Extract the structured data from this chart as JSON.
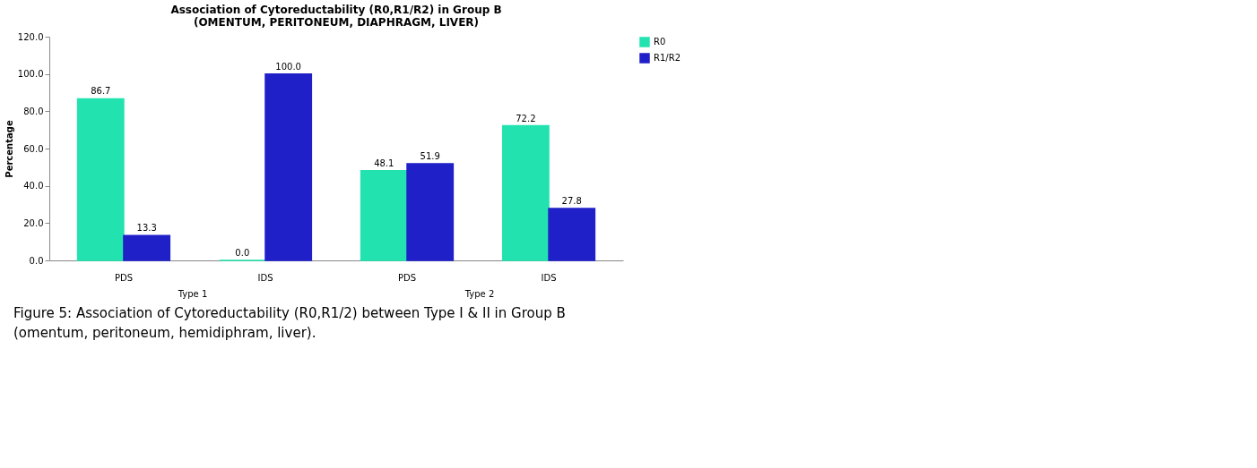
{
  "chart_data": {
    "type": "bar",
    "title": "Association of Cytoreductability (R0,R1/R2) in Group B\n(OMENTUM, PERITONEUM, DIAPHRAGM, LIVER)",
    "ylabel": "Percentage",
    "categories": [
      "PDS",
      "IDS",
      "PDS",
      "IDS"
    ],
    "series": [
      {
        "name": "R0",
        "color": "#22e3b0",
        "values": [
          86.7,
          0.0,
          48.1,
          72.2
        ],
        "value_labels": [
          "86.7",
          "0.0",
          "48.1",
          "72.2"
        ]
      },
      {
        "name": "R1/R2",
        "color": "#2020c8",
        "values": [
          13.3,
          100.0,
          51.9,
          27.8
        ],
        "value_labels": [
          "13.3",
          "100.0",
          "51.9",
          "27.8"
        ]
      }
    ],
    "ylim": [
      0,
      120
    ],
    "yticks": [
      {
        "value": 0,
        "label": "0.0"
      },
      {
        "value": 20,
        "label": "20.0"
      },
      {
        "value": 40,
        "label": "40.0"
      },
      {
        "value": 60,
        "label": "60.0"
      },
      {
        "value": 80,
        "label": "80.0"
      },
      {
        "value": 100,
        "label": "100.0"
      },
      {
        "value": 120,
        "label": "120.0"
      }
    ],
    "legend": "right",
    "grid": false,
    "annotations": [
      "Type 1",
      "Type 2",
      "Figure 5: Association of Cytoreductability (R0,R1/2) between Type I & II in Group B (omentum, peritoneum, hemidiphram, liver)."
    ]
  }
}
